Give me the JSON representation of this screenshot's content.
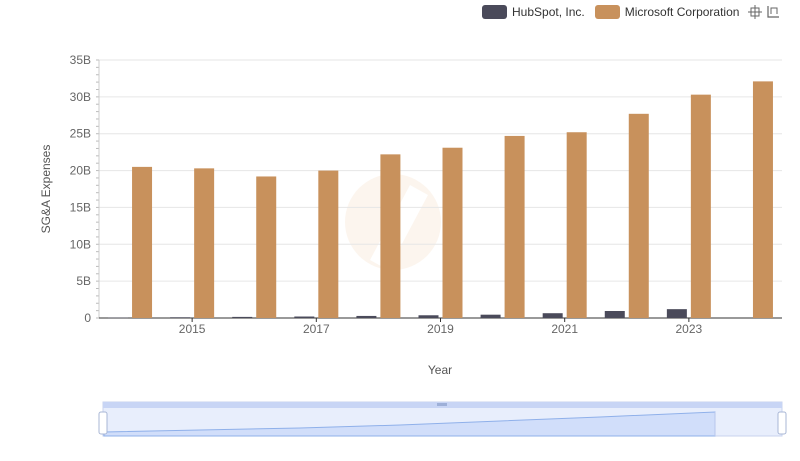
{
  "legend": {
    "items": [
      {
        "name": "HubSpot, Inc.",
        "color": "#4a4a5a"
      },
      {
        "name": "Microsoft Corporation",
        "color": "#c8915c"
      }
    ]
  },
  "toolbox": {
    "icons": [
      "zoom-icon",
      "zoom-reset-icon"
    ]
  },
  "chart_data": {
    "type": "bar",
    "title": "",
    "xlabel": "Year",
    "ylabel": "SG&A Expenses",
    "categories": [
      "2014",
      "2015",
      "2016",
      "2017",
      "2018",
      "2019",
      "2020",
      "2021",
      "2022",
      "2023",
      "2024"
    ],
    "x_tick_labels": [
      "2015",
      "2017",
      "2019",
      "2021",
      "2023"
    ],
    "y_tick_labels": [
      "0",
      "5B",
      "10B",
      "15B",
      "20B",
      "25B",
      "30B",
      "35B"
    ],
    "ylim": [
      0,
      35
    ],
    "grid": true,
    "legend_position": "top-right",
    "series": [
      {
        "name": "HubSpot, Inc.",
        "color": "#4a4a5a",
        "values": [
          0.05,
          0.1,
          0.15,
          0.2,
          0.28,
          0.37,
          0.45,
          0.65,
          0.95,
          1.2,
          null
        ]
      },
      {
        "name": "Microsoft Corporation",
        "color": "#c8915c",
        "values": [
          20.5,
          20.3,
          19.2,
          20.0,
          22.2,
          23.1,
          24.7,
          25.2,
          27.7,
          30.3,
          32.1
        ]
      }
    ]
  }
}
